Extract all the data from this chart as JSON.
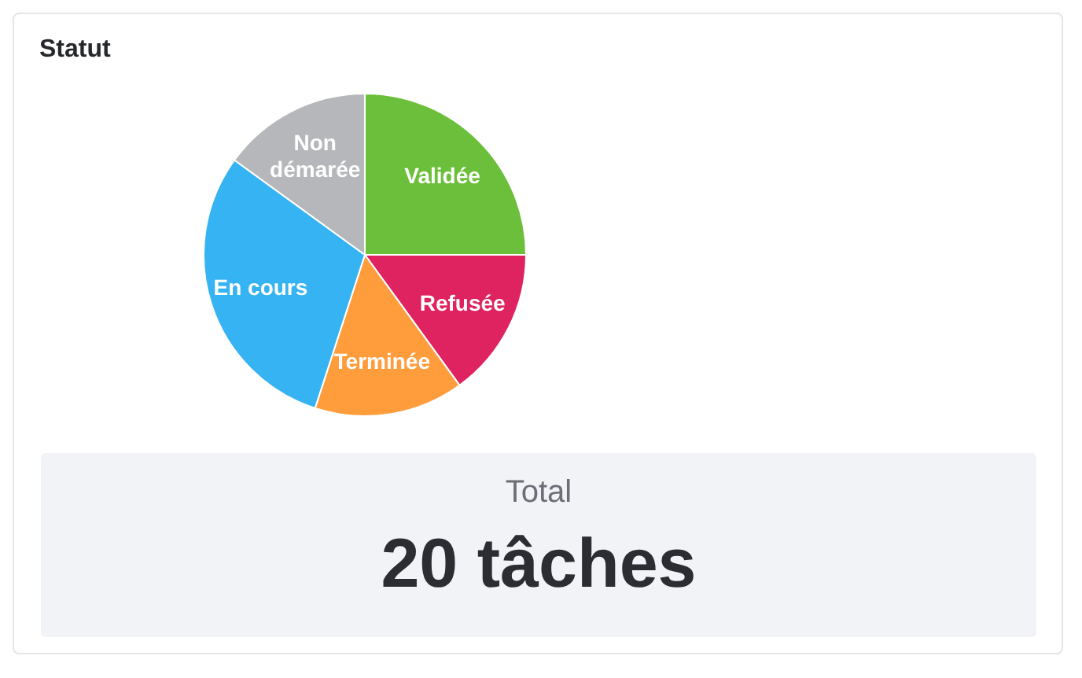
{
  "chart_data": {
    "type": "pie",
    "title": "Statut",
    "categories": [
      "Validée",
      "Refusée",
      "Terminée",
      "En cours",
      "Non démarée"
    ],
    "values": [
      25,
      15,
      15,
      30,
      15
    ],
    "colors": [
      "#6cbf3a",
      "#de2360",
      "#ff9d3d",
      "#36b3f2",
      "#b5b7bb"
    ],
    "annotations": [
      "Total",
      "20 tâches"
    ]
  }
}
